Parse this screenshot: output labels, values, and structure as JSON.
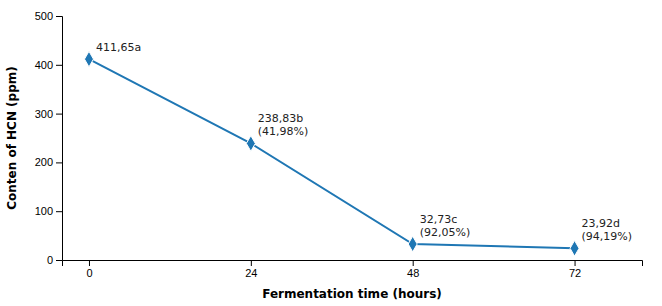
{
  "chart_data": {
    "type": "line",
    "x": [
      0,
      24,
      48,
      72
    ],
    "values": [
      411.65,
      238.83,
      32.73,
      23.92
    ],
    "annotations": [
      "411,65a",
      "238,83b\n(41,98%)",
      "32,73c\n(92,05%)",
      "23,92d\n(94,19%)"
    ],
    "xlabel": "Fermentation time (hours)",
    "ylabel": "Conten of HCN (ppm)",
    "xlim": [
      -4,
      82
    ],
    "ylim": [
      0,
      500
    ],
    "xticks": [
      0,
      24,
      48,
      72
    ],
    "yticks": [
      0,
      100,
      200,
      300,
      400,
      500
    ],
    "marker": "diamond"
  }
}
